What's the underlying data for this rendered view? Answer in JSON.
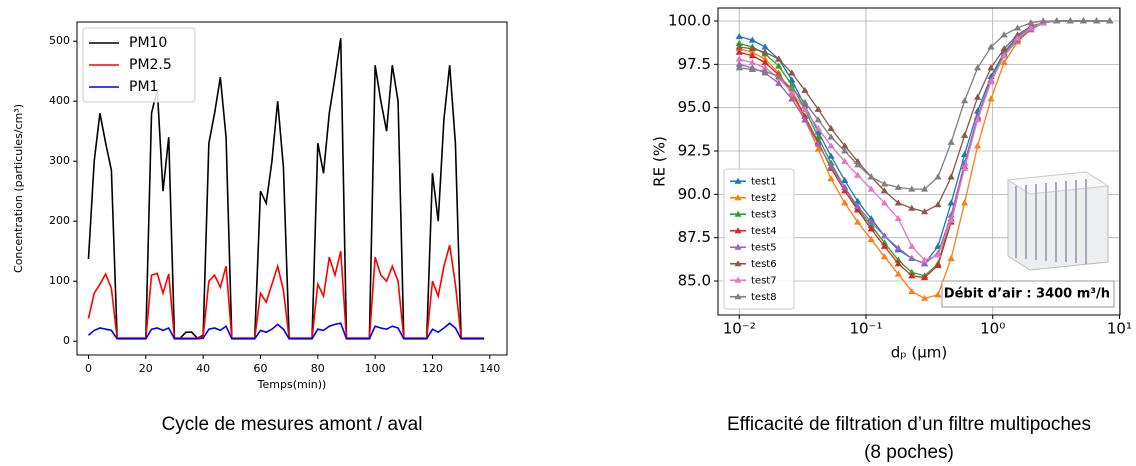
{
  "chart_data": [
    {
      "type": "line",
      "caption": "Cycle de mesures amont / aval",
      "x_label": "Temps(min))",
      "y_label": "Concentration (particules/cm³)",
      "x": [
        0,
        2,
        4,
        6,
        8,
        10,
        12,
        14,
        16,
        18,
        20,
        22,
        24,
        26,
        28,
        30,
        32,
        34,
        36,
        38,
        40,
        42,
        44,
        46,
        48,
        50,
        52,
        54,
        56,
        58,
        60,
        62,
        64,
        66,
        68,
        70,
        72,
        74,
        76,
        78,
        80,
        82,
        84,
        86,
        88,
        90,
        92,
        94,
        96,
        98,
        100,
        102,
        104,
        106,
        108,
        110,
        112,
        114,
        116,
        118,
        120,
        122,
        124,
        126,
        128,
        130,
        132,
        134,
        136,
        138
      ],
      "series": [
        {
          "name": "PM10",
          "color": "#000000",
          "values": [
            137,
            300,
            380,
            330,
            285,
            5,
            5,
            5,
            5,
            5,
            5,
            380,
            420,
            250,
            340,
            5,
            5,
            15,
            15,
            5,
            10,
            330,
            380,
            440,
            340,
            5,
            5,
            5,
            5,
            5,
            250,
            230,
            300,
            400,
            290,
            5,
            5,
            5,
            5,
            5,
            330,
            280,
            380,
            440,
            505,
            5,
            5,
            5,
            5,
            5,
            460,
            400,
            350,
            460,
            400,
            5,
            5,
            5,
            5,
            5,
            280,
            200,
            370,
            460,
            330,
            5,
            5,
            5,
            5,
            5
          ]
        },
        {
          "name": "PM2.5",
          "color": "#ff0000",
          "values": [
            38,
            80,
            95,
            112,
            88,
            5,
            5,
            5,
            5,
            5,
            5,
            110,
            113,
            80,
            112,
            5,
            5,
            5,
            5,
            5,
            8,
            100,
            110,
            90,
            125,
            5,
            5,
            5,
            5,
            5,
            80,
            65,
            95,
            125,
            85,
            5,
            5,
            5,
            5,
            5,
            95,
            75,
            140,
            110,
            150,
            5,
            5,
            5,
            5,
            5,
            140,
            110,
            100,
            125,
            100,
            5,
            5,
            5,
            5,
            5,
            100,
            75,
            125,
            160,
            95,
            5,
            5,
            5,
            5,
            5
          ]
        },
        {
          "name": "PM1",
          "color": "#0000ff",
          "values": [
            10,
            18,
            22,
            20,
            18,
            4,
            4,
            4,
            4,
            4,
            4,
            20,
            22,
            18,
            22,
            4,
            4,
            4,
            4,
            4,
            5,
            20,
            22,
            18,
            25,
            4,
            4,
            4,
            4,
            4,
            18,
            15,
            20,
            28,
            20,
            4,
            4,
            4,
            4,
            4,
            20,
            18,
            25,
            28,
            30,
            4,
            4,
            4,
            4,
            4,
            25,
            22,
            20,
            25,
            22,
            4,
            4,
            4,
            4,
            4,
            20,
            15,
            22,
            30,
            22,
            4,
            4,
            4,
            4,
            4
          ]
        }
      ],
      "xlim": [
        -4,
        146
      ],
      "ylim": [
        -23,
        532
      ],
      "xticks": [
        0,
        20,
        40,
        60,
        80,
        100,
        120,
        140
      ],
      "yticks": [
        0,
        100,
        200,
        300,
        400,
        500
      ],
      "grid": false,
      "legend": "upper left",
      "markers": false
    },
    {
      "type": "line",
      "caption": [
        "Efficacité de filtration d’un filtre multipoches",
        "(8 poches)"
      ],
      "x_label": "dₚ (μm)",
      "y_label": "RE (%)",
      "annotation": "Débit d’air : 3400 m³/h",
      "x": [
        0.01,
        0.0127,
        0.016,
        0.0205,
        0.026,
        0.033,
        0.042,
        0.053,
        0.068,
        0.086,
        0.11,
        0.14,
        0.18,
        0.23,
        0.29,
        0.37,
        0.47,
        0.6,
        0.76,
        0.97,
        1.23,
        1.57,
        2.0,
        2.5,
        3.2,
        4.1,
        5.2,
        6.6,
        8.4
      ],
      "series": [
        {
          "name": "test1",
          "color": "#1f77b4",
          "values": [
            99.1,
            98.9,
            98.5,
            97.8,
            96.6,
            95.1,
            93.6,
            92.2,
            90.8,
            89.6,
            88.6,
            87.6,
            86.8,
            86.3,
            86.0,
            87.0,
            89.5,
            92.3,
            94.8,
            96.8,
            98.2,
            99.1,
            99.6,
            99.9,
            100,
            100,
            100,
            100,
            100
          ]
        },
        {
          "name": "test2",
          "color": "#ff7f0e",
          "values": [
            98.4,
            98.2,
            97.8,
            97.0,
            95.8,
            94.3,
            92.6,
            90.9,
            89.5,
            88.4,
            87.4,
            86.4,
            85.4,
            84.4,
            84.0,
            84.2,
            86.3,
            89.5,
            92.8,
            95.5,
            97.6,
            98.8,
            99.5,
            99.9,
            100,
            100,
            100,
            100,
            100
          ]
        },
        {
          "name": "test3",
          "color": "#2ca02c",
          "values": [
            98.7,
            98.5,
            98.1,
            97.4,
            96.3,
            94.9,
            93.3,
            91.8,
            90.4,
            89.2,
            88.2,
            87.2,
            86.2,
            85.5,
            85.3,
            86.0,
            88.6,
            91.8,
            94.5,
            96.6,
            98.1,
            99.0,
            99.6,
            99.9,
            100,
            100,
            100,
            100,
            100
          ]
        },
        {
          "name": "test4",
          "color": "#d62728",
          "values": [
            98.2,
            98.0,
            97.6,
            96.9,
            95.9,
            94.5,
            93.0,
            91.5,
            90.2,
            89.1,
            88.0,
            87.0,
            86.0,
            85.3,
            85.2,
            85.9,
            88.4,
            91.6,
            94.4,
            96.5,
            98.0,
            99.0,
            99.6,
            99.9,
            100,
            100,
            100,
            100,
            100
          ]
        },
        {
          "name": "test5",
          "color": "#9467bd",
          "values": [
            97.5,
            97.3,
            97.0,
            96.4,
            95.5,
            94.3,
            92.9,
            91.6,
            90.4,
            89.3,
            88.4,
            87.6,
            86.9,
            86.3,
            86.0,
            86.6,
            88.8,
            91.8,
            94.5,
            96.6,
            98.0,
            98.9,
            99.5,
            99.9,
            100,
            100,
            100,
            100,
            100
          ]
        },
        {
          "name": "test6",
          "color": "#8c564b",
          "values": [
            98.5,
            98.4,
            98.2,
            97.8,
            97.0,
            96.0,
            94.9,
            93.8,
            92.8,
            91.9,
            91.0,
            90.2,
            89.5,
            89.2,
            89.0,
            89.4,
            91.0,
            93.4,
            95.6,
            97.3,
            98.4,
            99.2,
            99.7,
            99.9,
            100,
            100,
            100,
            100,
            100
          ]
        },
        {
          "name": "test7",
          "color": "#e377c2",
          "values": [
            97.8,
            97.6,
            97.3,
            96.7,
            95.9,
            94.9,
            93.8,
            92.8,
            91.9,
            91.1,
            90.3,
            89.5,
            88.6,
            87.0,
            86.2,
            86.5,
            88.5,
            91.5,
            94.3,
            96.5,
            98.0,
            99.0,
            99.6,
            99.9,
            100,
            100,
            100,
            100,
            100
          ]
        },
        {
          "name": "test8",
          "color": "#7f7f7f",
          "values": [
            97.3,
            97.2,
            97.1,
            96.8,
            96.1,
            95.3,
            94.3,
            93.3,
            92.5,
            91.7,
            91.0,
            90.6,
            90.4,
            90.3,
            90.3,
            91.0,
            93.0,
            95.4,
            97.3,
            98.5,
            99.2,
            99.6,
            99.9,
            100,
            100,
            100,
            100,
            100,
            100
          ]
        }
      ],
      "xlim": [
        0.0068,
        10.1
      ],
      "ylim": [
        83.04,
        100.75
      ],
      "xlog": true,
      "xticks": [
        {
          "value": 0.01,
          "label": "10⁻²"
        },
        {
          "value": 0.1,
          "label": "10⁻¹"
        },
        {
          "value": 1,
          "label": "10⁰"
        },
        {
          "value": 10,
          "label": "10¹"
        }
      ],
      "yticks": [
        {
          "value": 85,
          "label": "85.0"
        },
        {
          "value": 87.5,
          "label": "87.5"
        },
        {
          "value": 90,
          "label": "90.0"
        },
        {
          "value": 92.5,
          "label": "92.5"
        },
        {
          "value": 95,
          "label": "95.0"
        },
        {
          "value": 97.5,
          "label": "97.5"
        },
        {
          "value": 100,
          "label": "100.0"
        }
      ],
      "grid": true,
      "legend": "lower left",
      "markers": true
    }
  ]
}
